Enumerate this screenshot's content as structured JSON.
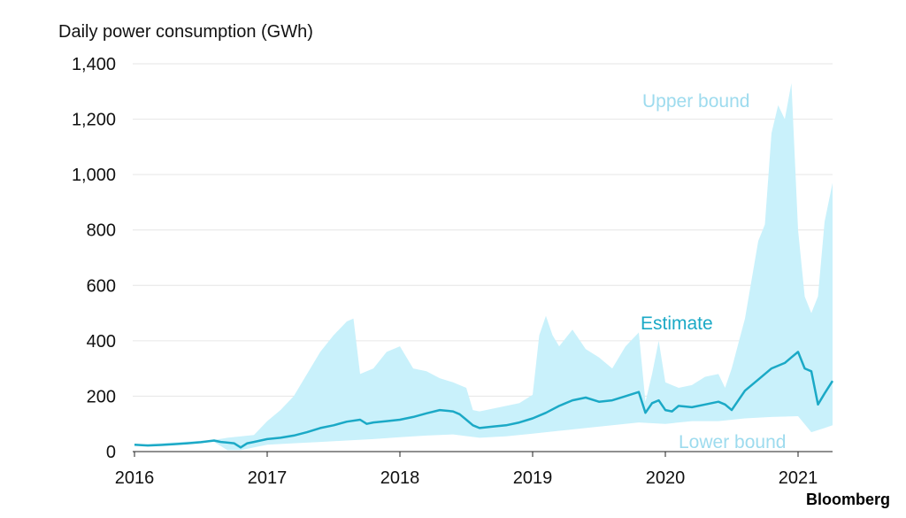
{
  "chart_data": {
    "type": "area",
    "title": "Daily power consumption (GWh)",
    "xlabel": "",
    "ylabel": "",
    "x_ticks": [
      "2016",
      "2017",
      "2018",
      "2019",
      "2020",
      "2021"
    ],
    "xlim": [
      2016.0,
      2021.26
    ],
    "ylim": [
      0,
      1400
    ],
    "y_ticks": [
      0,
      200,
      400,
      600,
      800,
      1000,
      1200,
      1400
    ],
    "y_tick_labels": [
      "0",
      "200",
      "400",
      "600",
      "800",
      "1,000",
      "1,200",
      "1,400"
    ],
    "grid": "horizontal",
    "colors": {
      "band": "#c9f1fb",
      "estimate": "#1ba9c6",
      "upper_label": "#9ddbee",
      "lower_label": "#9ddbee",
      "estimate_label": "#1ba9c6"
    },
    "annotations": {
      "upper": "Upper bound",
      "estimate": "Estimate",
      "lower": "Lower bound"
    },
    "series": [
      {
        "name": "Estimate",
        "x": [
          2016.0,
          2016.1,
          2016.2,
          2016.3,
          2016.4,
          2016.5,
          2016.6,
          2016.65,
          2016.75,
          2016.8,
          2016.85,
          2016.9,
          2017.0,
          2017.1,
          2017.2,
          2017.3,
          2017.4,
          2017.5,
          2017.6,
          2017.7,
          2017.75,
          2017.8,
          2017.9,
          2018.0,
          2018.1,
          2018.2,
          2018.3,
          2018.4,
          2018.45,
          2018.5,
          2018.55,
          2018.6,
          2018.7,
          2018.8,
          2018.9,
          2019.0,
          2019.1,
          2019.2,
          2019.3,
          2019.4,
          2019.5,
          2019.6,
          2019.7,
          2019.8,
          2019.85,
          2019.9,
          2019.95,
          2020.0,
          2020.05,
          2020.1,
          2020.2,
          2020.3,
          2020.4,
          2020.45,
          2020.5,
          2020.6,
          2020.7,
          2020.8,
          2020.9,
          2020.95,
          2021.0,
          2021.05,
          2021.1,
          2021.15,
          2021.2,
          2021.26
        ],
        "values": [
          25,
          22,
          24,
          27,
          30,
          34,
          40,
          35,
          30,
          15,
          30,
          35,
          45,
          50,
          58,
          70,
          85,
          95,
          108,
          115,
          100,
          105,
          110,
          115,
          125,
          138,
          150,
          145,
          135,
          115,
          95,
          85,
          90,
          95,
          105,
          120,
          140,
          165,
          185,
          195,
          180,
          185,
          200,
          215,
          140,
          175,
          185,
          150,
          145,
          165,
          160,
          170,
          180,
          170,
          150,
          220,
          260,
          300,
          320,
          340,
          360,
          300,
          290,
          170,
          210,
          255
        ]
      },
      {
        "name": "Upper bound",
        "x": [
          2016.0,
          2016.6,
          2016.7,
          2016.9,
          2017.0,
          2017.1,
          2017.2,
          2017.3,
          2017.4,
          2017.5,
          2017.6,
          2017.65,
          2017.7,
          2017.75,
          2017.8,
          2017.9,
          2018.0,
          2018.1,
          2018.2,
          2018.3,
          2018.4,
          2018.5,
          2018.55,
          2018.6,
          2018.7,
          2018.8,
          2018.9,
          2019.0,
          2019.05,
          2019.1,
          2019.15,
          2019.2,
          2019.3,
          2019.4,
          2019.5,
          2019.6,
          2019.7,
          2019.8,
          2019.85,
          2019.9,
          2019.95,
          2020.0,
          2020.1,
          2020.2,
          2020.3,
          2020.4,
          2020.45,
          2020.5,
          2020.6,
          2020.7,
          2020.75,
          2020.8,
          2020.85,
          2020.9,
          2020.95,
          2021.0,
          2021.05,
          2021.1,
          2021.15,
          2021.2,
          2021.26
        ],
        "values": [
          25,
          42,
          50,
          60,
          110,
          150,
          200,
          280,
          360,
          420,
          470,
          480,
          280,
          290,
          300,
          360,
          380,
          300,
          290,
          265,
          250,
          230,
          150,
          145,
          155,
          165,
          175,
          205,
          420,
          490,
          420,
          380,
          440,
          370,
          340,
          300,
          380,
          430,
          180,
          280,
          400,
          250,
          230,
          240,
          270,
          280,
          230,
          300,
          480,
          760,
          820,
          1150,
          1250,
          1200,
          1330,
          800,
          560,
          500,
          560,
          830,
          970
        ]
      },
      {
        "name": "Lower bound",
        "x": [
          2016.0,
          2016.6,
          2016.7,
          2016.8,
          2016.9,
          2017.0,
          2017.2,
          2017.4,
          2017.6,
          2017.8,
          2018.0,
          2018.2,
          2018.4,
          2018.6,
          2018.8,
          2019.0,
          2019.2,
          2019.4,
          2019.6,
          2019.8,
          2020.0,
          2020.2,
          2020.4,
          2020.6,
          2020.8,
          2021.0,
          2021.1,
          2021.2,
          2021.26
        ],
        "values": [
          25,
          35,
          5,
          5,
          15,
          25,
          30,
          35,
          40,
          45,
          52,
          58,
          62,
          50,
          55,
          65,
          75,
          85,
          95,
          105,
          100,
          110,
          110,
          120,
          125,
          128,
          70,
          85,
          95
        ]
      }
    ]
  },
  "source": {
    "brand": "Bloomberg"
  }
}
